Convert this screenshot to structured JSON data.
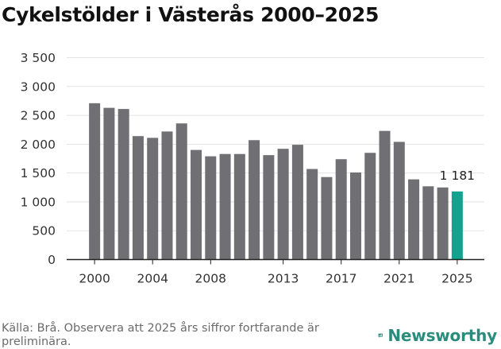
{
  "title": "Cykelstölder i Västerås 2000–2025",
  "source": "Källa: Brå. Observera att 2025 års siffror fortfarande är preliminära.",
  "brand": {
    "name": "Newsworthy",
    "color": "#2a8c7d",
    "icon": "newsworthy-logo-icon"
  },
  "colors": {
    "bar": "#707074",
    "highlight": "#12a38f",
    "grid": "#e3e3e3",
    "axis": "#222222"
  },
  "chart_data": {
    "type": "bar",
    "title": "Cykelstölder i Västerås 2000–2025",
    "xlabel": "",
    "ylabel": "",
    "ylim": [
      0,
      3500
    ],
    "yticks": [
      0,
      500,
      1000,
      1500,
      2000,
      2500,
      3000,
      3500
    ],
    "ytick_labels": [
      "0",
      "500",
      "1 000",
      "1 500",
      "2 000",
      "2 500",
      "3 000",
      "3 500"
    ],
    "xticks": [
      2000,
      2004,
      2008,
      2013,
      2017,
      2021,
      2025
    ],
    "categories": [
      2000,
      2001,
      2002,
      2003,
      2004,
      2005,
      2006,
      2007,
      2008,
      2009,
      2010,
      2011,
      2012,
      2013,
      2014,
      2015,
      2016,
      2017,
      2018,
      2019,
      2020,
      2021,
      2022,
      2023,
      2024,
      2025
    ],
    "values": [
      2710,
      2630,
      2610,
      2140,
      2110,
      2220,
      2360,
      1900,
      1790,
      1830,
      1830,
      2070,
      1810,
      1920,
      1990,
      1570,
      1430,
      1740,
      1510,
      1850,
      2230,
      2040,
      1390,
      1270,
      1250,
      1181
    ],
    "highlight": {
      "category": 2025,
      "value": 1181,
      "label": "1 181"
    },
    "grid": true
  }
}
